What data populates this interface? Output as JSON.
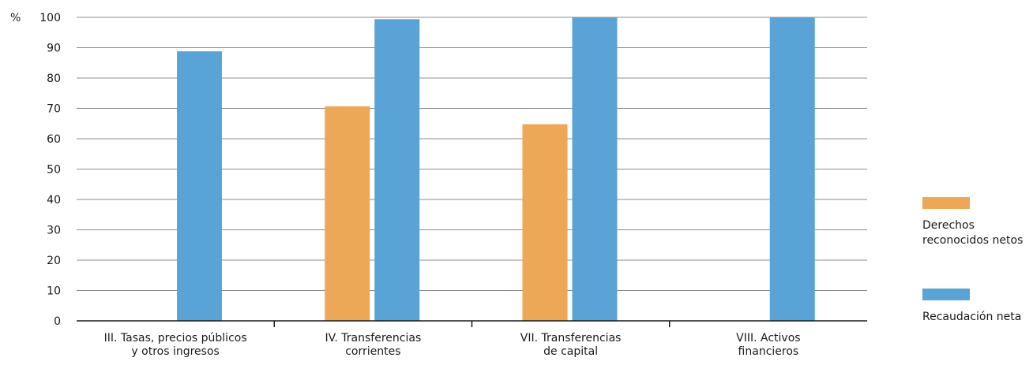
{
  "chart_data": {
    "type": "bar",
    "y_unit_label": "%",
    "ylim": [
      0,
      100
    ],
    "y_ticks": [
      0,
      10,
      20,
      30,
      40,
      50,
      60,
      70,
      80,
      90,
      100
    ],
    "grid": true,
    "legend_position": "right",
    "categories": [
      [
        "III. Tasas, precios públicos",
        "y otros ingresos"
      ],
      [
        "IV. Transferencias",
        "corrientes"
      ],
      [
        "VII. Transferencias",
        "de capital"
      ],
      [
        "VIII. Activos",
        "financieros"
      ]
    ],
    "series": [
      {
        "name": [
          "Derechos",
          "reconocidos netos"
        ],
        "color": "#eda857",
        "values": [
          null,
          70.7,
          64.8,
          null
        ]
      },
      {
        "name": [
          "Recaudación neta"
        ],
        "color": "#5aa3d6",
        "values": [
          88.8,
          99.4,
          100,
          100
        ]
      }
    ]
  }
}
